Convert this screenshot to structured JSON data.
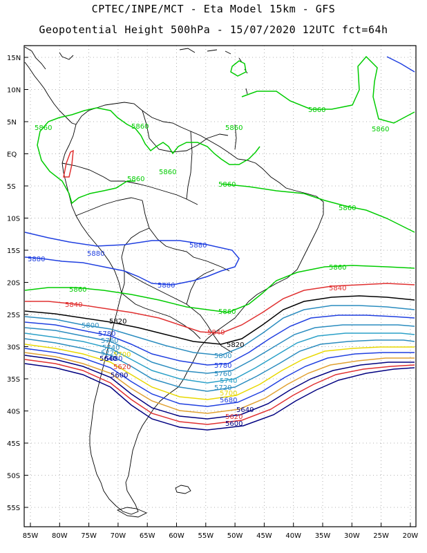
{
  "title_line1": "CPTEC/INPE/MCT -  Eta Model 15km - GFS",
  "title_line2": "Geopotential Height 500hPa - 15/07/2020 12UTC fct=64h",
  "lat_ticks": [
    "15N",
    "10N",
    "5N",
    "EQ",
    "5S",
    "10S",
    "15S",
    "20S",
    "25S",
    "30S",
    "35S",
    "40S",
    "45S",
    "50S",
    "55S"
  ],
  "lon_ticks": [
    "85W",
    "80W",
    "75W",
    "70W",
    "65W",
    "60W",
    "55W",
    "50W",
    "45W",
    "40W",
    "35W",
    "30W",
    "25W",
    "20W"
  ],
  "contour_labels": [
    {
      "text": "5860",
      "color": "#00cc00"
    },
    {
      "text": "5860",
      "color": "#00cc00"
    },
    {
      "text": "5860",
      "color": "#00cc00"
    },
    {
      "text": "5860",
      "color": "#00cc00"
    },
    {
      "text": "5860",
      "color": "#00cc00"
    },
    {
      "text": "5860",
      "color": "#00cc00"
    },
    {
      "text": "5860",
      "color": "#00cc00"
    },
    {
      "text": "5860",
      "color": "#00cc00"
    },
    {
      "text": "5860",
      "color": "#00cc00"
    },
    {
      "text": "5860",
      "color": "#00cc00"
    },
    {
      "text": "5860",
      "color": "#00cc00"
    },
    {
      "text": "5860",
      "color": "#00cc00"
    },
    {
      "text": "5880",
      "color": "#1f3fe0"
    },
    {
      "text": "5880",
      "color": "#1f3fe0"
    },
    {
      "text": "5880",
      "color": "#1f3fe0"
    },
    {
      "text": "5880",
      "color": "#1f3fe0"
    },
    {
      "text": "5840",
      "color": "#e03030"
    },
    {
      "text": "5840",
      "color": "#e03030"
    },
    {
      "text": "5840",
      "color": "#e03030"
    },
    {
      "text": "5820",
      "color": "#000000"
    },
    {
      "text": "5820",
      "color": "#000000"
    },
    {
      "text": "5800",
      "color": "#2a8cbf"
    },
    {
      "text": "5800",
      "color": "#2a8cbf"
    },
    {
      "text": "5780",
      "color": "#1f3fe0"
    },
    {
      "text": "5780",
      "color": "#1f3fe0"
    },
    {
      "text": "5760",
      "color": "#2a8cbf"
    },
    {
      "text": "5760",
      "color": "#2a8cbf"
    },
    {
      "text": "5740",
      "color": "#2a8cbf"
    },
    {
      "text": "5740",
      "color": "#2aa0c8"
    },
    {
      "text": "5720",
      "color": "#2a8cbf"
    },
    {
      "text": "5720",
      "color": "#2a8cbf"
    },
    {
      "text": "5700",
      "color": "#e8d800"
    },
    {
      "text": "5700",
      "color": "#e8d800"
    },
    {
      "text": "5680",
      "color": "#1f3fe0"
    },
    {
      "text": "5680",
      "color": "#1f3fe0"
    },
    {
      "text": "5640",
      "color": "#000080"
    },
    {
      "text": "5640",
      "color": "#000080"
    },
    {
      "text": "5620",
      "color": "#e03030"
    },
    {
      "text": "5620",
      "color": "#e03030"
    },
    {
      "text": "5600",
      "color": "#000080"
    },
    {
      "text": "5600",
      "color": "#000080"
    }
  ]
}
